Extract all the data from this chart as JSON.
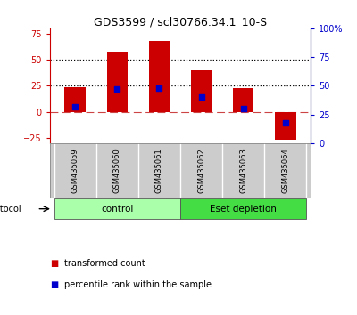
{
  "title": "GDS3599 / scl30766.34.1_10-S",
  "samples": [
    "GSM435059",
    "GSM435060",
    "GSM435061",
    "GSM435062",
    "GSM435063",
    "GSM435064"
  ],
  "transformed_counts": [
    24,
    58,
    68,
    40,
    23,
    -27
  ],
  "percentile_ranks": [
    32,
    47,
    48,
    40,
    30,
    18
  ],
  "groups": [
    {
      "label": "control",
      "color": "#AAFFAA",
      "samples": [
        0,
        1,
        2
      ]
    },
    {
      "label": "Eset depletion",
      "color": "#44DD44",
      "samples": [
        3,
        4,
        5
      ]
    }
  ],
  "bar_color": "#CC0000",
  "dot_color": "#0000CC",
  "left_ylim": [
    -30,
    80
  ],
  "left_yticks": [
    -25,
    0,
    25,
    50,
    75
  ],
  "right_ylim": [
    0,
    100
  ],
  "right_yticks": [
    0,
    25,
    50,
    75,
    100
  ],
  "right_yticklabels": [
    "0",
    "25",
    "50",
    "75",
    "100%"
  ],
  "hline_y_left": [
    25,
    50
  ],
  "legend_items": [
    {
      "color": "#CC0000",
      "label": "transformed count"
    },
    {
      "color": "#0000CC",
      "label": "percentile rank within the sample"
    }
  ],
  "protocol_label": "protocol",
  "left_axis_color": "#CC0000",
  "right_axis_color": "#0000CC",
  "background_color": "#ffffff",
  "bar_width": 0.5,
  "label_bg": "#cccccc",
  "label_border": "#888888"
}
